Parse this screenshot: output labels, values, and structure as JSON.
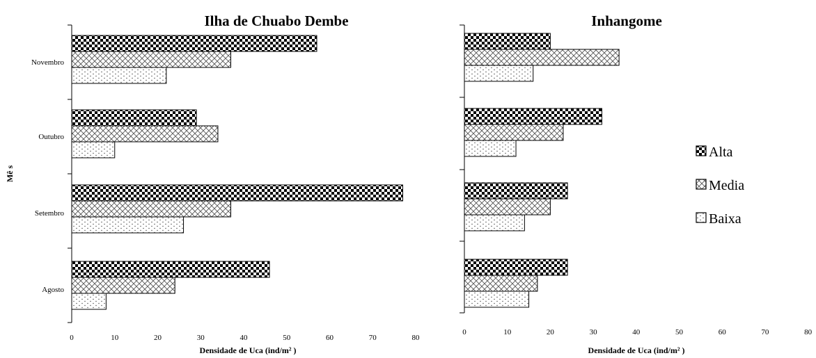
{
  "chart_data": [
    {
      "type": "bar",
      "orientation": "horizontal",
      "title": "Ilha de Chuabo Dembe",
      "xlabel": "Densidade de Uca (ind/m² )",
      "ylabel": "Mê s",
      "categories": [
        "Agosto",
        "Setembro",
        "Outubro",
        "Novembro"
      ],
      "xlim": [
        0,
        80
      ],
      "xticks": [
        0,
        10,
        20,
        30,
        40,
        50,
        60,
        70,
        80
      ],
      "series": [
        {
          "name": "Alta",
          "values": [
            46,
            77,
            29,
            57
          ]
        },
        {
          "name": "Media",
          "values": [
            24,
            37,
            34,
            37
          ]
        },
        {
          "name": "Baixa",
          "values": [
            8,
            26,
            10,
            22
          ]
        }
      ],
      "grid": false
    },
    {
      "type": "bar",
      "orientation": "horizontal",
      "title": "Inhangome",
      "xlabel": "Densidade de Uca (ind/m² )",
      "ylabel": "",
      "categories": [
        "Agosto",
        "Setembro",
        "Outubro",
        "Novembro"
      ],
      "xlim": [
        0,
        80
      ],
      "xticks": [
        0,
        10,
        20,
        30,
        40,
        50,
        60,
        70,
        80
      ],
      "series": [
        {
          "name": "Alta",
          "values": [
            24,
            24,
            32,
            20
          ]
        },
        {
          "name": "Media",
          "values": [
            17,
            20,
            23,
            36
          ]
        },
        {
          "name": "Baixa",
          "values": [
            15,
            14,
            12,
            16
          ]
        }
      ],
      "grid": false
    }
  ],
  "legend": {
    "placement": "right",
    "items": [
      {
        "label": "Alta",
        "pattern": "checker"
      },
      {
        "label": "Media",
        "pattern": "crosshatch"
      },
      {
        "label": "Baixa",
        "pattern": "dots"
      }
    ]
  }
}
